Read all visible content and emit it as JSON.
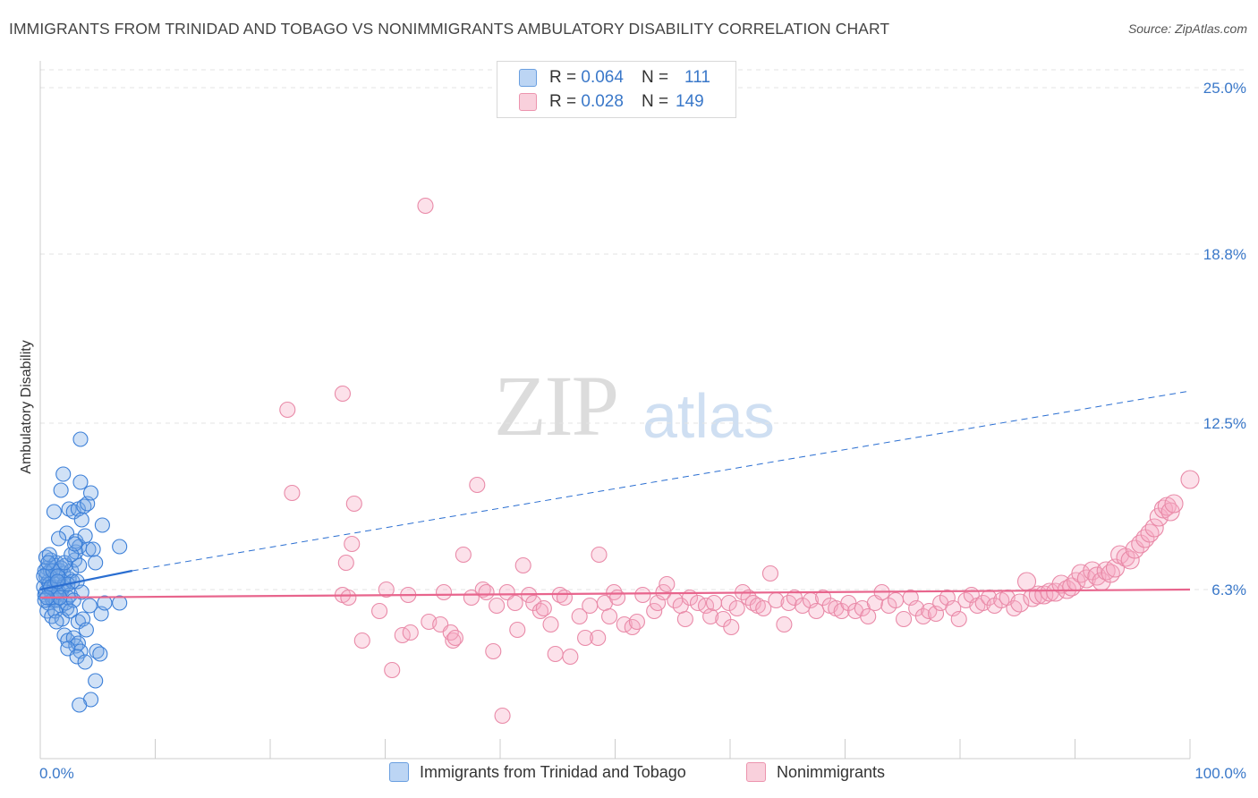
{
  "header": {
    "title": "IMMIGRANTS FROM TRINIDAD AND TOBAGO VS NONIMMIGRANTS AMBULATORY DISABILITY CORRELATION CHART",
    "source": "Source: ZipAtlas.com"
  },
  "watermark": {
    "zip": "ZIP",
    "atlas": "atlas"
  },
  "legend": {
    "rows": [
      {
        "r_label": "R =",
        "r_value": "0.064",
        "n_label": "N =",
        "n_value": "111",
        "color": "#a9c8f0",
        "border": "#6a9fe0"
      },
      {
        "r_label": "R =",
        "r_value": "0.028",
        "n_label": "N =",
        "n_value": "149",
        "color": "#f7c0d0",
        "border": "#ec94ae"
      }
    ]
  },
  "bottom_legend": {
    "series1": "Immigrants from Trinidad and Tobago",
    "series2": "Nonimmigrants"
  },
  "colors": {
    "blue_fill": "rgba(120,170,230,0.35)",
    "blue_stroke": "#3b7fd8",
    "blue_line": "#2a6ed1",
    "pink_fill": "rgba(245,170,195,0.35)",
    "pink_stroke": "#e98aa8",
    "pink_line": "#e8658d",
    "tick_text": "#3a78c9"
  },
  "chart_data": {
    "type": "scatter",
    "title": "IMMIGRANTS FROM TRINIDAD AND TOBAGO VS NONIMMIGRANTS AMBULATORY DISABILITY CORRELATION CHART",
    "xlabel": "",
    "ylabel": "Ambulatory Disability",
    "xlim": [
      0,
      100
    ],
    "ylim": [
      0,
      26.3
    ],
    "x_tick_labels": [
      "0.0%",
      "100.0%"
    ],
    "y_ticks": [
      6.3,
      12.5,
      18.8,
      25.0
    ],
    "y_tick_labels": [
      "6.3%",
      "12.5%",
      "18.8%",
      "25.0%"
    ],
    "grid": "horizontal dashed",
    "series": [
      {
        "name": "Immigrants from Trinidad and Tobago",
        "points": [
          [
            0.3,
            6.4
          ],
          [
            0.4,
            6.1
          ],
          [
            0.5,
            6.8
          ],
          [
            0.6,
            7.1
          ],
          [
            0.7,
            6.6
          ],
          [
            0.8,
            6.3
          ],
          [
            0.9,
            7.4
          ],
          [
            1.0,
            6.0
          ],
          [
            1.1,
            6.7
          ],
          [
            1.2,
            7.2
          ],
          [
            0.5,
            7.5
          ],
          [
            0.6,
            6.9
          ],
          [
            0.7,
            5.8
          ],
          [
            0.8,
            6.5
          ],
          [
            0.9,
            7.0
          ],
          [
            1.0,
            6.2
          ],
          [
            1.1,
            5.9
          ],
          [
            1.2,
            6.4
          ],
          [
            1.3,
            6.8
          ],
          [
            1.4,
            7.3
          ],
          [
            1.5,
            6.1
          ],
          [
            1.6,
            6.6
          ],
          [
            1.7,
            7.0
          ],
          [
            1.8,
            5.7
          ],
          [
            1.9,
            6.3
          ],
          [
            2.0,
            6.9
          ],
          [
            2.1,
            6.5
          ],
          [
            2.2,
            7.2
          ],
          [
            2.3,
            5.6
          ],
          [
            2.4,
            6.0
          ],
          [
            0.4,
            7.0
          ],
          [
            0.5,
            6.2
          ],
          [
            0.6,
            5.5
          ],
          [
            0.8,
            7.6
          ],
          [
            1.0,
            5.3
          ],
          [
            1.2,
            6.0
          ],
          [
            1.4,
            5.9
          ],
          [
            1.6,
            6.2
          ],
          [
            1.8,
            7.1
          ],
          [
            2.0,
            6.4
          ],
          [
            2.2,
            5.8
          ],
          [
            2.5,
            6.7
          ],
          [
            2.7,
            7.0
          ],
          [
            3.0,
            7.4
          ],
          [
            2.6,
            6.1
          ],
          [
            2.8,
            6.6
          ],
          [
            0.3,
            6.8
          ],
          [
            0.4,
            5.9
          ],
          [
            0.9,
            6.4
          ],
          [
            1.1,
            7.0
          ],
          [
            1.3,
            5.5
          ],
          [
            1.5,
            6.8
          ],
          [
            1.7,
            6.0
          ],
          [
            2.1,
            7.3
          ],
          [
            2.4,
            6.5
          ],
          [
            3.2,
            6.6
          ],
          [
            3.4,
            7.2
          ],
          [
            3.6,
            6.2
          ],
          [
            2.9,
            5.9
          ],
          [
            3.1,
            7.7
          ],
          [
            1.2,
            9.2
          ],
          [
            1.8,
            10.0
          ],
          [
            2.0,
            10.6
          ],
          [
            2.3,
            8.4
          ],
          [
            2.5,
            9.3
          ],
          [
            2.9,
            9.2
          ],
          [
            3.3,
            9.3
          ],
          [
            3.5,
            10.3
          ],
          [
            3.6,
            8.9
          ],
          [
            3.8,
            9.4
          ],
          [
            4.1,
            9.5
          ],
          [
            4.4,
            9.9
          ],
          [
            5.4,
            8.7
          ],
          [
            3.1,
            8.1
          ],
          [
            3.4,
            7.9
          ],
          [
            3.9,
            8.3
          ],
          [
            4.2,
            7.8
          ],
          [
            4.6,
            7.8
          ],
          [
            6.9,
            7.9
          ],
          [
            4.8,
            7.3
          ],
          [
            3.5,
            11.9
          ],
          [
            1.6,
            8.2
          ],
          [
            2.7,
            7.6
          ],
          [
            3.0,
            8.0
          ],
          [
            1.9,
            5.2
          ],
          [
            1.4,
            5.1
          ],
          [
            2.6,
            5.5
          ],
          [
            3.3,
            5.1
          ],
          [
            3.7,
            5.2
          ],
          [
            4.0,
            4.8
          ],
          [
            5.3,
            5.4
          ],
          [
            4.3,
            5.7
          ],
          [
            5.6,
            5.8
          ],
          [
            6.9,
            5.8
          ],
          [
            2.1,
            4.6
          ],
          [
            2.4,
            4.4
          ],
          [
            2.9,
            4.5
          ],
          [
            3.1,
            4.2
          ],
          [
            3.3,
            4.3
          ],
          [
            3.5,
            4.0
          ],
          [
            4.9,
            4.0
          ],
          [
            5.2,
            3.9
          ],
          [
            2.4,
            4.1
          ],
          [
            3.2,
            3.8
          ],
          [
            3.9,
            3.6
          ],
          [
            4.8,
            2.9
          ],
          [
            4.4,
            2.2
          ],
          [
            3.4,
            2.0
          ],
          [
            1.5,
            6.6
          ],
          [
            0.6,
            6.0
          ],
          [
            0.7,
            7.3
          ]
        ],
        "trend": {
          "x": [
            0,
            8,
            100
          ],
          "y": [
            6.3,
            7.0,
            13.7
          ]
        }
      },
      {
        "name": "Nonimmigrants",
        "points": [
          [
            21.5,
            13.0
          ],
          [
            21.9,
            9.9
          ],
          [
            26.3,
            13.6
          ],
          [
            26.6,
            7.3
          ],
          [
            27.1,
            8.0
          ],
          [
            26.3,
            6.1
          ],
          [
            26.8,
            6.0
          ],
          [
            27.3,
            9.5
          ],
          [
            28.0,
            4.4
          ],
          [
            29.5,
            5.5
          ],
          [
            30.1,
            6.3
          ],
          [
            30.6,
            3.3
          ],
          [
            31.5,
            4.6
          ],
          [
            32.2,
            4.7
          ],
          [
            32.0,
            6.1
          ],
          [
            33.5,
            20.6
          ],
          [
            33.8,
            5.1
          ],
          [
            34.8,
            5.0
          ],
          [
            35.1,
            6.2
          ],
          [
            35.9,
            4.4
          ],
          [
            35.7,
            4.7
          ],
          [
            36.1,
            4.5
          ],
          [
            36.8,
            7.6
          ],
          [
            37.5,
            6.0
          ],
          [
            38.0,
            10.2
          ],
          [
            38.5,
            6.3
          ],
          [
            38.8,
            6.2
          ],
          [
            39.4,
            4.0
          ],
          [
            39.7,
            5.7
          ],
          [
            40.2,
            1.6
          ],
          [
            40.6,
            6.2
          ],
          [
            41.3,
            5.8
          ],
          [
            41.5,
            4.8
          ],
          [
            42.0,
            7.2
          ],
          [
            42.5,
            6.1
          ],
          [
            42.9,
            5.8
          ],
          [
            43.5,
            5.5
          ],
          [
            43.8,
            5.6
          ],
          [
            44.4,
            5.0
          ],
          [
            44.8,
            3.9
          ],
          [
            45.2,
            6.1
          ],
          [
            45.6,
            6.0
          ],
          [
            46.1,
            3.8
          ],
          [
            46.9,
            5.3
          ],
          [
            47.4,
            4.5
          ],
          [
            47.8,
            5.7
          ],
          [
            48.5,
            4.5
          ],
          [
            48.6,
            7.6
          ],
          [
            49.1,
            5.8
          ],
          [
            49.5,
            5.3
          ],
          [
            49.9,
            6.2
          ],
          [
            50.2,
            6.0
          ],
          [
            50.8,
            5.0
          ],
          [
            51.5,
            4.9
          ],
          [
            51.9,
            5.1
          ],
          [
            52.4,
            6.1
          ],
          [
            53.4,
            5.5
          ],
          [
            53.7,
            5.8
          ],
          [
            54.2,
            6.2
          ],
          [
            54.5,
            6.5
          ],
          [
            55.2,
            5.9
          ],
          [
            55.7,
            5.7
          ],
          [
            56.1,
            5.2
          ],
          [
            56.5,
            6.0
          ],
          [
            57.2,
            5.8
          ],
          [
            57.9,
            5.7
          ],
          [
            58.3,
            5.3
          ],
          [
            58.6,
            5.8
          ],
          [
            59.4,
            5.2
          ],
          [
            59.9,
            5.8
          ],
          [
            60.1,
            4.9
          ],
          [
            60.6,
            5.6
          ],
          [
            61.1,
            6.2
          ],
          [
            61.6,
            6.0
          ],
          [
            62.0,
            5.8
          ],
          [
            62.4,
            5.7
          ],
          [
            62.9,
            5.6
          ],
          [
            63.5,
            6.9
          ],
          [
            64.0,
            5.9
          ],
          [
            64.7,
            5.0
          ],
          [
            65.1,
            5.8
          ],
          [
            65.6,
            6.0
          ],
          [
            66.3,
            5.7
          ],
          [
            67.0,
            5.9
          ],
          [
            67.5,
            5.5
          ],
          [
            68.1,
            6.0
          ],
          [
            68.7,
            5.7
          ],
          [
            69.2,
            5.6
          ],
          [
            69.7,
            5.5
          ],
          [
            70.3,
            5.8
          ],
          [
            70.9,
            5.5
          ],
          [
            71.5,
            5.6
          ],
          [
            72.0,
            5.3
          ],
          [
            72.6,
            5.8
          ],
          [
            73.2,
            6.2
          ],
          [
            73.8,
            5.7
          ],
          [
            74.4,
            5.9
          ],
          [
            75.1,
            5.2
          ],
          [
            75.7,
            6.0
          ],
          [
            76.2,
            5.6
          ],
          [
            76.8,
            5.3
          ],
          [
            77.3,
            5.5
          ],
          [
            77.9,
            5.4
          ],
          [
            78.3,
            5.8
          ],
          [
            78.9,
            6.0
          ],
          [
            79.4,
            5.6
          ],
          [
            79.9,
            5.2
          ],
          [
            80.5,
            5.9
          ],
          [
            81.0,
            6.1
          ],
          [
            81.5,
            5.7
          ],
          [
            82.0,
            5.8
          ],
          [
            82.5,
            6.0
          ],
          [
            83.0,
            5.7
          ],
          [
            83.6,
            5.9
          ],
          [
            84.1,
            6.0
          ],
          [
            84.7,
            5.6
          ],
          [
            85.2,
            5.8
          ],
          [
            85.8,
            6.6
          ],
          [
            86.3,
            6.0
          ],
          [
            86.8,
            6.1
          ],
          [
            87.3,
            6.1
          ],
          [
            87.8,
            6.2
          ],
          [
            88.3,
            6.2
          ],
          [
            88.8,
            6.5
          ],
          [
            89.3,
            6.3
          ],
          [
            89.7,
            6.4
          ],
          [
            90.1,
            6.6
          ],
          [
            90.5,
            6.9
          ],
          [
            91.0,
            6.7
          ],
          [
            91.5,
            7.0
          ],
          [
            91.9,
            6.8
          ],
          [
            92.3,
            6.6
          ],
          [
            92.7,
            7.0
          ],
          [
            93.1,
            6.9
          ],
          [
            93.5,
            7.1
          ],
          [
            93.9,
            7.6
          ],
          [
            94.4,
            7.5
          ],
          [
            94.8,
            7.4
          ],
          [
            95.2,
            7.8
          ],
          [
            95.7,
            8.0
          ],
          [
            96.1,
            8.2
          ],
          [
            96.5,
            8.4
          ],
          [
            96.9,
            8.6
          ],
          [
            97.3,
            9.0
          ],
          [
            97.7,
            9.3
          ],
          [
            98.0,
            9.4
          ],
          [
            98.3,
            9.2
          ],
          [
            98.6,
            9.5
          ],
          [
            100.0,
            10.4
          ]
        ],
        "trend": {
          "x": [
            0,
            100
          ],
          "y": [
            6.0,
            6.3
          ]
        }
      }
    ]
  }
}
